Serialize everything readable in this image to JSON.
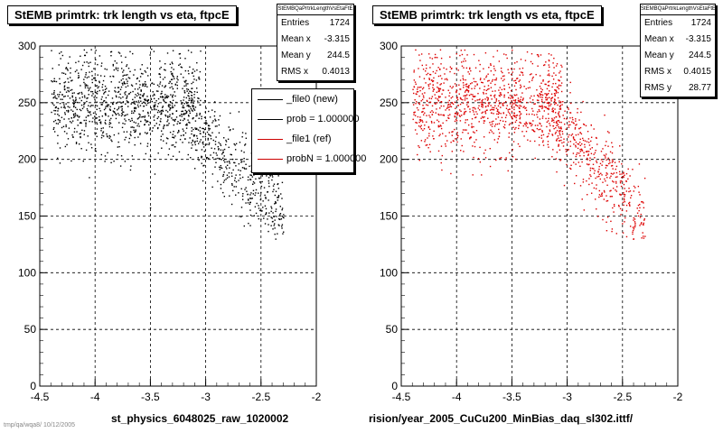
{
  "pads": [
    {
      "id": "left",
      "title": "StEMB primtrk: trk length vs eta, ftpcE",
      "stats": {
        "header": "StEMBQaPrtrkLengthVsEtaFtE",
        "rows": [
          {
            "label": "Entries",
            "value": "1724"
          },
          {
            "label": "Mean x",
            "value": "-3.315"
          },
          {
            "label": "Mean y",
            "value": "244.5"
          },
          {
            "label": "RMS x",
            "value": "0.4013"
          }
        ]
      },
      "legend": [
        {
          "label": "_file0 (new)",
          "color": "#000000"
        },
        {
          "label": "prob = 1.000000",
          "color": "#000000"
        },
        {
          "label": "_file1 (ref)",
          "color": "#cc0000"
        },
        {
          "label": "probN = 1.000000",
          "color": "#cc0000"
        }
      ],
      "xaxis_title": "st_physics_6048025_raw_1020002",
      "marker_color": "#000000"
    },
    {
      "id": "right",
      "title": "StEMB primtrk: trk length vs eta, ftpcE",
      "stats": {
        "header": "StEMBQaPrtrkLengthVsEtaFtE",
        "rows": [
          {
            "label": "Entries",
            "value": "1724"
          },
          {
            "label": "Mean x",
            "value": "-3.315"
          },
          {
            "label": "Mean y",
            "value": "244.5"
          },
          {
            "label": "RMS x",
            "value": "0.4015"
          },
          {
            "label": "RMS y",
            "value": "28.77"
          }
        ]
      },
      "legend": [],
      "xaxis_title": "rision/year_2005_CuCu200_MinBias_daq_sl302.ittf/",
      "marker_color": "#dd0000"
    }
  ],
  "footer": "tmp/qa/wqa8/ 10/12/2005",
  "chart_data": [
    {
      "type": "scatter",
      "title": "StEMB primtrk: trk length vs eta, ftpcE",
      "xlabel": "st_physics_6048025_raw_1020002",
      "ylabel": "",
      "xlim": [
        -4.5,
        -2
      ],
      "ylim": [
        0,
        300
      ],
      "xticks": [
        -4.5,
        -4,
        -3.5,
        -3,
        -2.5,
        -2
      ],
      "yticks": [
        0,
        50,
        100,
        150,
        200,
        250,
        300
      ],
      "grid": true,
      "entries": 1724,
      "mean_x": -3.315,
      "mean_y": 244.5,
      "rms_x": 0.4013,
      "series": [
        {
          "name": "_file0 (new)",
          "color": "#000000"
        }
      ]
    },
    {
      "type": "scatter",
      "title": "StEMB primtrk: trk length vs eta, ftpcE",
      "xlabel": "rision/year_2005_CuCu200_MinBias_daq_sl302.ittf/",
      "ylabel": "",
      "xlim": [
        -4.5,
        -2
      ],
      "ylim": [
        0,
        300
      ],
      "xticks": [
        -4.5,
        -4,
        -3.5,
        -3,
        -2.5,
        -2
      ],
      "yticks": [
        0,
        50,
        100,
        150,
        200,
        250,
        300
      ],
      "grid": true,
      "entries": 1724,
      "mean_x": -3.315,
      "mean_y": 244.5,
      "rms_x": 0.4015,
      "rms_y": 28.77,
      "series": [
        {
          "name": "_file1 (ref)",
          "color": "#dd0000"
        }
      ]
    }
  ]
}
